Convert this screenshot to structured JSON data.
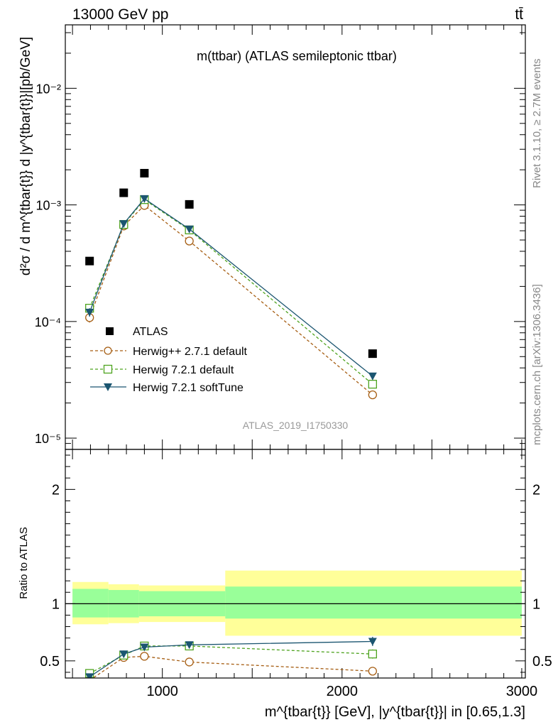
{
  "header": {
    "left": "13000 GeV pp",
    "right": "tt̄"
  },
  "side": {
    "rivet": "Rivet 3.1.10, ≥ 2.7M events",
    "mcplots": "mcplots.cern.ch [arXiv:1306.3436]"
  },
  "colors": {
    "atlas": "#000000",
    "herwigpp": "#a65e13",
    "herwig721": "#4ea31f",
    "softtune": "#1b5570",
    "band_inner": "#99ff99",
    "band_outer": "#ffff99"
  },
  "chart_data": [
    {
      "type": "scatter",
      "panel": "main",
      "title": "m(ttbar) (ATLAS semileptonic ttbar)",
      "ylabel": "d²σ / d m^{tbar{t}} d |y^{tbar{t}}|[pb/GeV]",
      "yscale": "log",
      "ylim": [
        8e-06,
        0.035
      ],
      "xlim": [
        460,
        3020
      ],
      "y_ticklabels": [
        "10⁻⁵",
        "10⁻⁴",
        "10⁻³",
        "10⁻²"
      ],
      "watermark": "ATLAS_2019_I1750330",
      "legend_position": "lower-left",
      "series": [
        {
          "name": "ATLAS",
          "key": "atlas",
          "marker": "filled-square",
          "x": [
            595,
            785,
            900,
            1150,
            2170
          ],
          "y": [
            0.00033,
            0.00127,
            0.00187,
            0.00101,
            5.3e-05
          ]
        },
        {
          "name": "Herwig++ 2.7.1 default",
          "key": "herwigpp",
          "marker": "open-circle",
          "line": "dashed",
          "x": [
            595,
            785,
            900,
            1150,
            2170
          ],
          "y": [
            0.000108,
            0.00066,
            0.00099,
            0.00049,
            2.35e-05
          ],
          "yerr": [
            1e-05,
            3e-05,
            4e-05,
            2e-05,
            1.5e-06
          ]
        },
        {
          "name": "Herwig 7.2.1 default",
          "key": "herwig721",
          "marker": "open-square",
          "line": "dashed",
          "x": [
            595,
            785,
            900,
            1150,
            2170
          ],
          "y": [
            0.00013,
            0.00068,
            0.00111,
            0.00061,
            2.9e-05
          ],
          "yerr": [
            1e-05,
            3e-05,
            4e-05,
            2e-05,
            1.5e-06
          ]
        },
        {
          "name": "Herwig 7.2.1 softTune",
          "key": "softtune",
          "marker": "filled-triangle-down",
          "line": "solid",
          "x": [
            595,
            785,
            900,
            1150,
            2170
          ],
          "y": [
            0.00012,
            0.00069,
            0.00113,
            0.00062,
            3.4e-05
          ],
          "yerr": [
            1e-05,
            3e-05,
            4e-05,
            2e-05,
            1.5e-06
          ]
        }
      ]
    },
    {
      "type": "line",
      "panel": "ratio",
      "ylabel": "Ratio to ATLAS",
      "xlabel": "m^{tbar{t}} [GeV], |y^{tbar{t}}| in [0.65,1.3]",
      "xlim": [
        460,
        3020
      ],
      "ylim": [
        0.35,
        2.35
      ],
      "x_ticklabels": [
        "1000",
        "2000",
        "3000"
      ],
      "y_ticklabels": [
        "0.5",
        "1",
        "2"
      ],
      "bins": [
        {
          "xlo": 500,
          "xhi": 700,
          "inner": [
            0.88,
            1.13
          ],
          "outer": [
            0.82,
            1.19
          ]
        },
        {
          "xlo": 700,
          "xhi": 870,
          "inner": [
            0.88,
            1.12
          ],
          "outer": [
            0.83,
            1.17
          ]
        },
        {
          "xlo": 870,
          "xhi": 1350,
          "inner": [
            0.89,
            1.11
          ],
          "outer": [
            0.84,
            1.16
          ]
        },
        {
          "xlo": 1350,
          "xhi": 3000,
          "inner": [
            0.87,
            1.15
          ],
          "outer": [
            0.72,
            1.29
          ]
        }
      ],
      "series": [
        {
          "name": "Herwig++ 2.7.1 default",
          "key": "herwigpp",
          "marker": "open-circle",
          "line": "dashed",
          "x": [
            595,
            785,
            900,
            1150,
            2170
          ],
          "y": [
            0.33,
            0.53,
            0.54,
            0.49,
            0.41
          ],
          "yerr": [
            0.02,
            0.03,
            0.03,
            0.02,
            0.03
          ]
        },
        {
          "name": "Herwig 7.2.1 default",
          "key": "herwig721",
          "marker": "open-square",
          "line": "dashed",
          "x": [
            595,
            785,
            900,
            1150,
            2170
          ],
          "y": [
            0.39,
            0.55,
            0.63,
            0.63,
            0.56
          ],
          "yerr": [
            0.02,
            0.03,
            0.03,
            0.02,
            0.04
          ]
        },
        {
          "name": "Herwig 7.2.1 softTune",
          "key": "softtune",
          "marker": "filled-triangle-down",
          "line": "solid",
          "x": [
            595,
            785,
            900,
            1150,
            2170
          ],
          "y": [
            0.36,
            0.56,
            0.62,
            0.64,
            0.67
          ],
          "yerr": [
            0.02,
            0.03,
            0.03,
            0.02,
            0.04
          ]
        }
      ]
    }
  ]
}
